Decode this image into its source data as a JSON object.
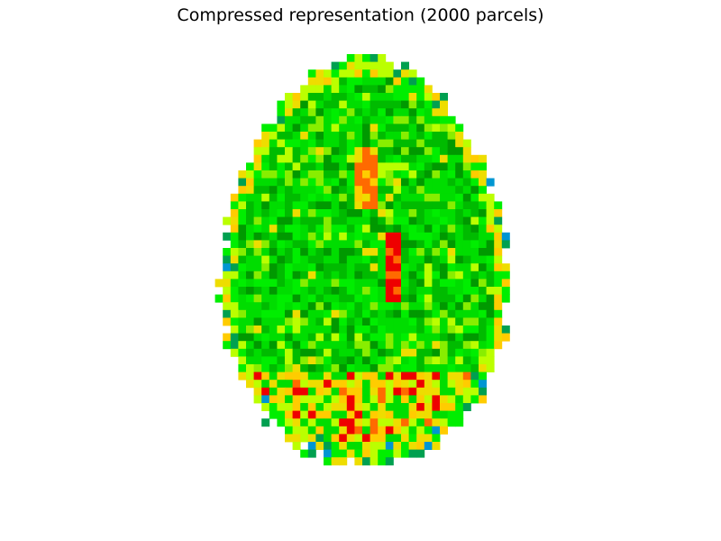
{
  "figure": {
    "title": "Compressed representation (2000 parcels)",
    "subject": "axial brain slice parcellation map",
    "colors": {
      "background": "#ffffff",
      "palette": [
        "#0096d2",
        "#00a050",
        "#009900",
        "#00bb00",
        "#00dd00",
        "#00ee00",
        "#88ee00",
        "#bbff00",
        "#eedd00",
        "#ffcc00",
        "#ff6a00",
        "#ee0000"
      ]
    }
  }
}
